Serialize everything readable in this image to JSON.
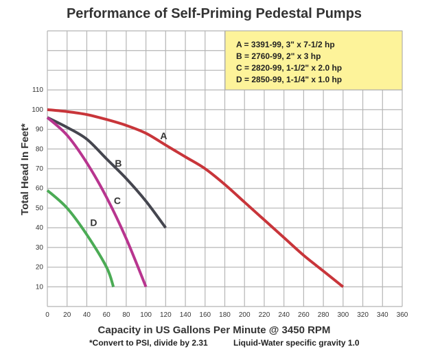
{
  "chart_data": {
    "type": "line",
    "title": "Performance of Self-Priming Pedestal Pumps",
    "xlabel": "Capacity in US Gallons Per Minute @ 3450 RPM",
    "ylabel": "Total Head In Feet*",
    "xlim": [
      0,
      360
    ],
    "ylim": [
      0,
      140
    ],
    "x_ticks": [
      0,
      20,
      40,
      60,
      80,
      100,
      120,
      140,
      160,
      180,
      200,
      220,
      240,
      260,
      280,
      300,
      320,
      340,
      360
    ],
    "y_ticks": [
      10,
      20,
      30,
      40,
      50,
      60,
      70,
      80,
      90,
      100,
      110
    ],
    "grid": true,
    "legend_position": "top-right",
    "legend": [
      "A = 3391-99, 3\" x 7-1/2 hp",
      "B = 2760-99, 2\" x 3 hp",
      "C = 2820-99, 1-1/2\" x 2.0 hp",
      "D = 2850-99, 1-1/4\" x 1.0 hp"
    ],
    "series": [
      {
        "name": "A",
        "color": "#c8353a",
        "x": [
          0,
          20,
          40,
          60,
          80,
          100,
          120,
          140,
          160,
          180,
          200,
          220,
          240,
          260,
          280,
          300
        ],
        "y": [
          100,
          99,
          97.5,
          95,
          92,
          88,
          82,
          76,
          70,
          62,
          53,
          44,
          35,
          26,
          18,
          10
        ],
        "label_at": [
          118,
          85
        ]
      },
      {
        "name": "B",
        "color": "#45464f",
        "x": [
          0,
          20,
          40,
          60,
          80,
          100,
          120
        ],
        "y": [
          96,
          91,
          85,
          75,
          65,
          53.5,
          40
        ],
        "label_at": [
          72,
          71
        ]
      },
      {
        "name": "C",
        "color": "#b8358f",
        "x": [
          0,
          20,
          40,
          60,
          80,
          100
        ],
        "y": [
          96,
          87,
          73,
          55.5,
          34.5,
          10
        ],
        "label_at": [
          71,
          52
        ]
      },
      {
        "name": "D",
        "color": "#4bab55",
        "x": [
          0,
          20,
          40,
          60,
          67
        ],
        "y": [
          59,
          50,
          36.5,
          20,
          10
        ],
        "label_at": [
          47,
          41
        ]
      }
    ],
    "notes": [
      "*Convert to PSI, divide by 2.31",
      "Liquid-Water specific gravity 1.0"
    ]
  },
  "colors": {
    "legend_bg": "#fdf39a",
    "grid": "#b5b5b5",
    "text": "#333333"
  }
}
